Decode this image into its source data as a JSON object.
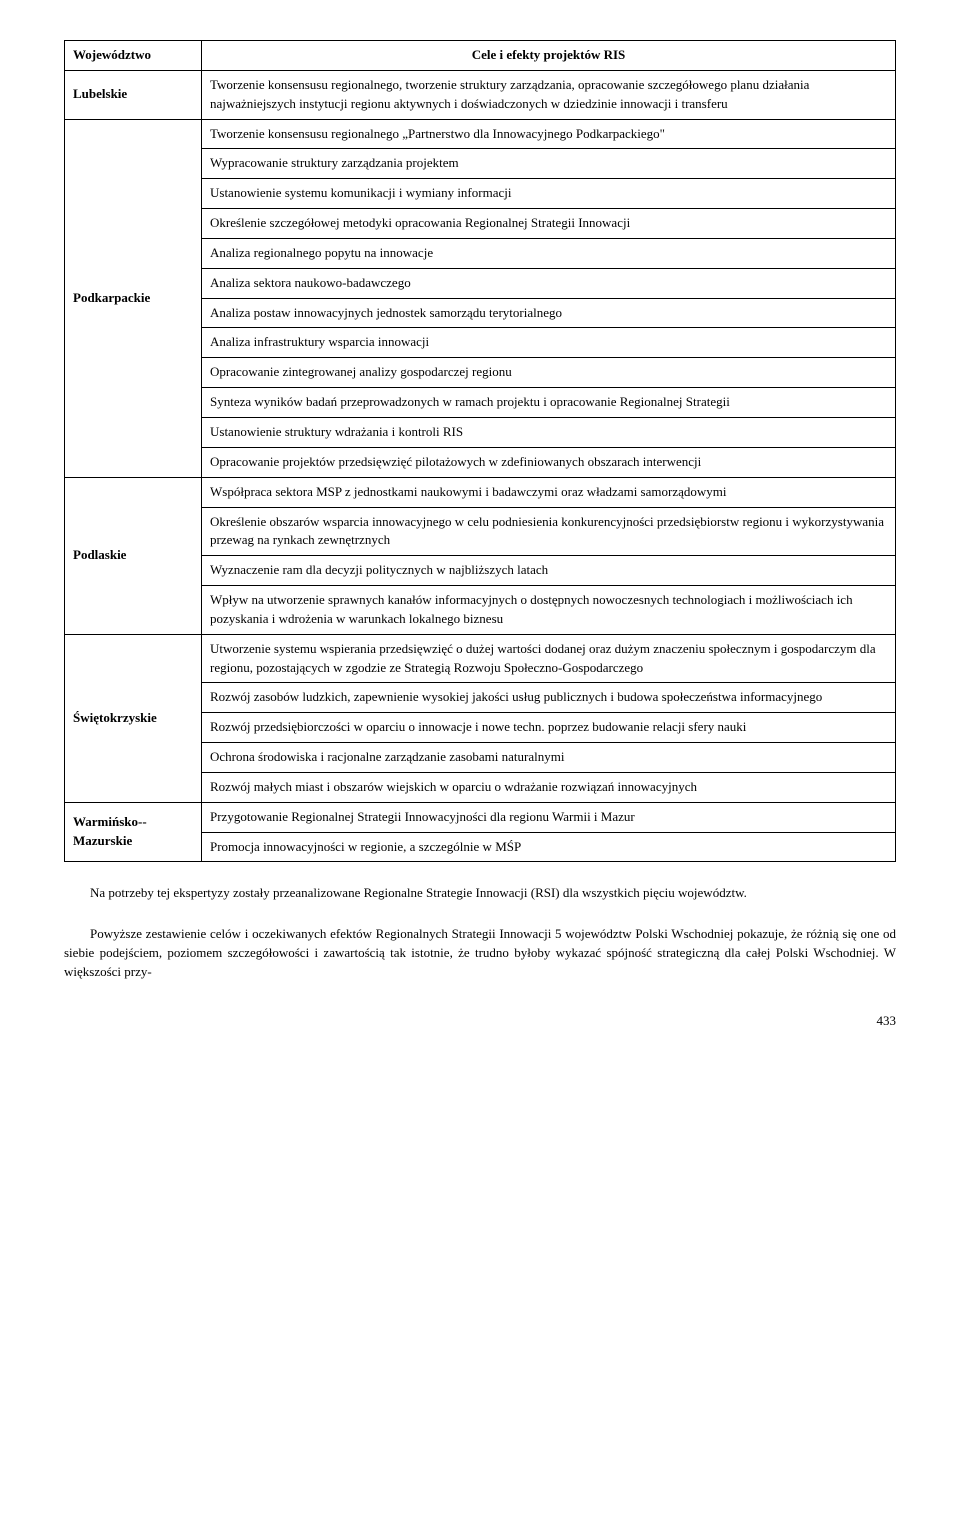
{
  "table": {
    "headers": {
      "region": "Województwo",
      "goals": "Cele i efekty projektów RIS"
    },
    "rows": [
      {
        "region": "Lubelskie",
        "cells": [
          "Tworzenie konsensusu regionalnego, tworzenie struktury zarządzania, opracowanie szczegółowego planu działania najważniejszych instytucji regionu aktywnych i doświadczonych w dziedzinie innowacji i transferu"
        ]
      },
      {
        "region": "Podkarpackie",
        "cells": [
          "Tworzenie konsensusu regionalnego „Partnerstwo dla Innowacyjnego Podkarpackiego\"",
          "Wypracowanie struktury zarządzania projektem",
          "Ustanowienie systemu komunikacji i wymiany informacji",
          "Określenie szczegółowej metodyki opracowania Regionalnej Strategii Innowacji",
          "Analiza regionalnego popytu na innowacje",
          "Analiza sektora naukowo-badawczego",
          "Analiza postaw innowacyjnych jednostek samorządu terytorialnego",
          "Analiza infrastruktury wsparcia innowacji",
          "Opracowanie zintegrowanej analizy gospodarczej regionu",
          "Synteza wyników badań przeprowadzonych w ramach projektu i opracowanie Regionalnej Strategii",
          "Ustanowienie struktury wdrażania i kontroli RIS",
          "Opracowanie projektów przedsięwzięć pilotażowych w zdefiniowanych obszarach interwencji"
        ]
      },
      {
        "region": "Podlaskie",
        "cells": [
          "Współpraca sektora MSP z jednostkami naukowymi i badawczymi oraz władzami samorządowymi",
          "Określenie obszarów wsparcia innowacyjnego w celu podniesienia konkurencyjności przedsiębiorstw regionu i wykorzystywania przewag na rynkach zewnętrznych",
          "Wyznaczenie ram dla decyzji politycznych w najbliższych latach",
          "Wpływ na utworzenie sprawnych kanałów informacyjnych o dostępnych nowoczesnych technologiach i możliwościach ich pozyskania i wdrożenia w warunkach lokalnego biznesu"
        ]
      },
      {
        "region": "Świętokrzyskie",
        "cells": [
          "Utworzenie systemu wspierania przedsięwzięć o dużej wartości dodanej oraz dużym znaczeniu społecznym i gospodarczym dla regionu, pozostających w zgodzie ze Strategią Rozwoju Społeczno-Gospodarczego",
          "Rozwój zasobów ludzkich, zapewnienie wysokiej jakości usług publicznych i budowa społeczeństwa informacyjnego",
          "Rozwój przedsiębiorczości w oparciu o innowacje i nowe techn. poprzez budowanie relacji sfery nauki",
          "Ochrona środowiska i racjonalne zarządzanie zasobami naturalnymi",
          "Rozwój małych miast i obszarów wiejskich w oparciu o wdrażanie rozwiązań innowacyjnych"
        ]
      },
      {
        "region": "Warmińsko-​-Mazurskie",
        "cells": [
          "Przygotowanie Regionalnej Strategii Innowacyjności dla regionu Warmii i Mazur",
          "Promocja innowacyjności w regionie, a szczególnie w MŚP"
        ]
      }
    ]
  },
  "body_paragraphs": [
    "Na potrzeby tej ekspertyzy zostały przeanalizowane Regionalne Strategie Innowacji (RSI) dla wszystkich pięciu województw.",
    "Powyższe zestawienie celów i oczekiwanych efektów Regionalnych Strategii Innowacji 5 województw Polski Wschodniej pokazuje, że różnią się one od siebie podejściem, poziomem szczegółowości i zawartością tak istotnie, że trudno byłoby wykazać spójność strategiczną dla całej Polski Wschodniej. W większości przy-"
  ],
  "page_number": "433"
}
